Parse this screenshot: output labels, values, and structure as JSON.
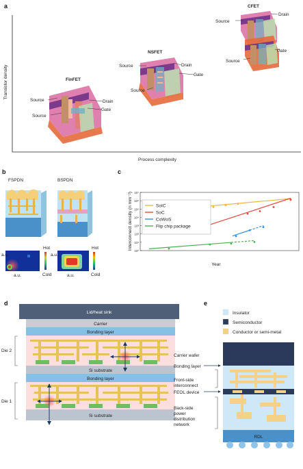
{
  "panel_a": {
    "letter": "a",
    "y_axis_label": "Transistor density",
    "x_axis_label": "Process complexity",
    "devices": [
      {
        "name": "FinFET",
        "source_top": "Source",
        "source_bottom": "Source",
        "drain": "Drain",
        "gate": "Gate"
      },
      {
        "name": "NSFET",
        "source_top": "Source",
        "source_bottom": "Source",
        "drain": "Drain",
        "gate": "Gate"
      },
      {
        "name": "CFET",
        "source_top": "Source",
        "source_bottom": "Source",
        "drain": "Drain",
        "gate": "Gate"
      }
    ]
  },
  "panel_b": {
    "letter": "b",
    "fspdn": "FSPDN",
    "bspdn": "BSPDN",
    "hot": "Hot",
    "cold": "Cold",
    "au": "a.u."
  },
  "panel_c": {
    "letter": "c",
    "chart_data": {
      "type": "line",
      "xlabel": "Year",
      "ylabel": "Interconnect density (n mm⁻²)",
      "yscale": "log",
      "ylim_exp": [
        0,
        7
      ],
      "y_ticks": [
        "10⁰",
        "10¹",
        "10²",
        "10³",
        "10⁴",
        "10⁵",
        "10⁶",
        "10⁷"
      ],
      "legend_position": "top-left",
      "series": [
        {
          "name": "SoIC",
          "color": "#e9b949",
          "log_values": [
            5.4,
            5.6,
            5.8,
            6.25
          ]
        },
        {
          "name": "SoC",
          "color": "#e04a3f",
          "log_values": [
            4.6,
            4.9,
            5.4,
            6.3
          ]
        },
        {
          "name": "CoWoS",
          "color": "#3b8fd4",
          "log_values": [
            1.9,
            2.6,
            3.0
          ]
        },
        {
          "name": "Flip chip package",
          "color": "#4caf50",
          "log_values": [
            0.4,
            0.9,
            1.0,
            1.2
          ]
        }
      ]
    }
  },
  "panel_d": {
    "letter": "d",
    "lid": "Lid/heat sink",
    "carrier": "Carrier",
    "bonding_layer_top": "Bonding layer",
    "bonding_layer_mid": "Bonding layer",
    "si_substrate_top": "Si substrate",
    "si_substrate_bottom": "Si substrate",
    "die2": "Die 2",
    "die1": "Die 1"
  },
  "panel_e": {
    "letter": "e",
    "legend": [
      {
        "label": "Insulator",
        "color": "#cfe8f8"
      },
      {
        "label": "Semiconductor",
        "color": "#2b3a5a"
      },
      {
        "label": "Conductor or semi-metal",
        "color": "#f3d287"
      }
    ],
    "carrier_wafer": "Carrier wafer",
    "bonding_layer": "Bonding layer",
    "front_side_1": "Front-side",
    "front_side_2": "interconnect",
    "feol": "FEOL device",
    "back_1": "Back-side",
    "back_2": "power",
    "back_3": "distribution",
    "back_4": "network",
    "rdl": "RDL"
  }
}
